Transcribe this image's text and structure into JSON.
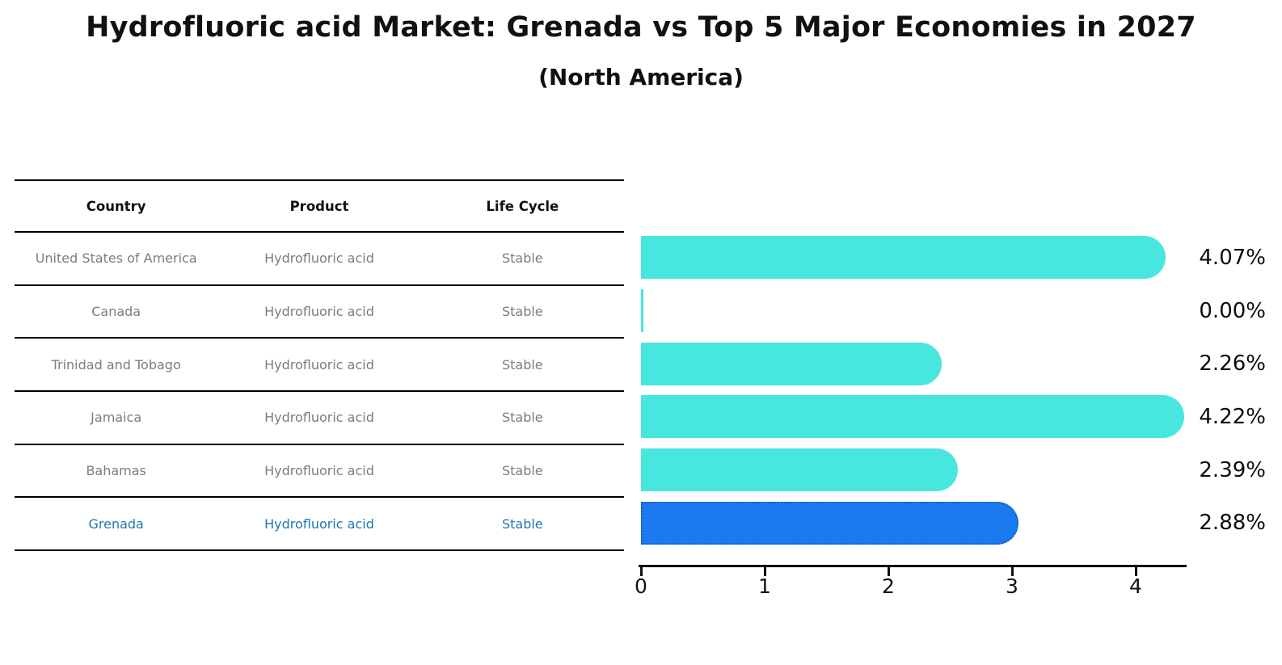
{
  "title": "Hydrofluoric acid Market: Grenada vs Top 5 Major Economies in 2027",
  "subtitle": "(North America)",
  "table": {
    "headers": [
      "Country",
      "Product",
      "Life Cycle"
    ],
    "rows": [
      {
        "country": "United States of America",
        "product": "Hydrofluoric acid",
        "life_cycle": "Stable",
        "highlighted": false
      },
      {
        "country": "Canada",
        "product": "Hydrofluoric acid",
        "life_cycle": "Stable",
        "highlighted": false
      },
      {
        "country": "Trinidad and Tobago",
        "product": "Hydrofluoric acid",
        "life_cycle": "Stable",
        "highlighted": false
      },
      {
        "country": "Jamaica",
        "product": "Hydrofluoric acid",
        "life_cycle": "Stable",
        "highlighted": false
      },
      {
        "country": "Bahamas",
        "product": "Hydrofluoric acid",
        "life_cycle": "Stable",
        "highlighted": false
      },
      {
        "country": "Grenada",
        "product": "Hydrofluoric acid",
        "life_cycle": "Stable",
        "highlighted": true
      }
    ]
  },
  "chart_data": {
    "type": "bar",
    "orientation": "horizontal",
    "title": "Hydrofluoric acid Market: Grenada vs Top 5 Major Economies in 2027",
    "subtitle": "(North America)",
    "categories": [
      "United States of America",
      "Canada",
      "Trinidad and Tobago",
      "Jamaica",
      "Bahamas",
      "Grenada"
    ],
    "values": [
      4.07,
      0.0,
      2.26,
      4.22,
      2.39,
      2.88
    ],
    "value_labels": [
      "4.07%",
      "0.00%",
      "2.26%",
      "4.22%",
      "2.39%",
      "2.88%"
    ],
    "highlight_category": "Grenada",
    "x_ticks": [
      0,
      1,
      2,
      3,
      4
    ],
    "xlim": [
      0,
      4.41
    ],
    "grid": false,
    "legend": false,
    "colors": {
      "bar": "#47e7e0",
      "highlight_bar": "#1b7bee",
      "highlight_bar_border": "#1161c8",
      "highlight_text": "#1f77b8",
      "table_text": "#7c7c7c",
      "axis": "#111111",
      "value_label": "#0d0d0d"
    }
  }
}
